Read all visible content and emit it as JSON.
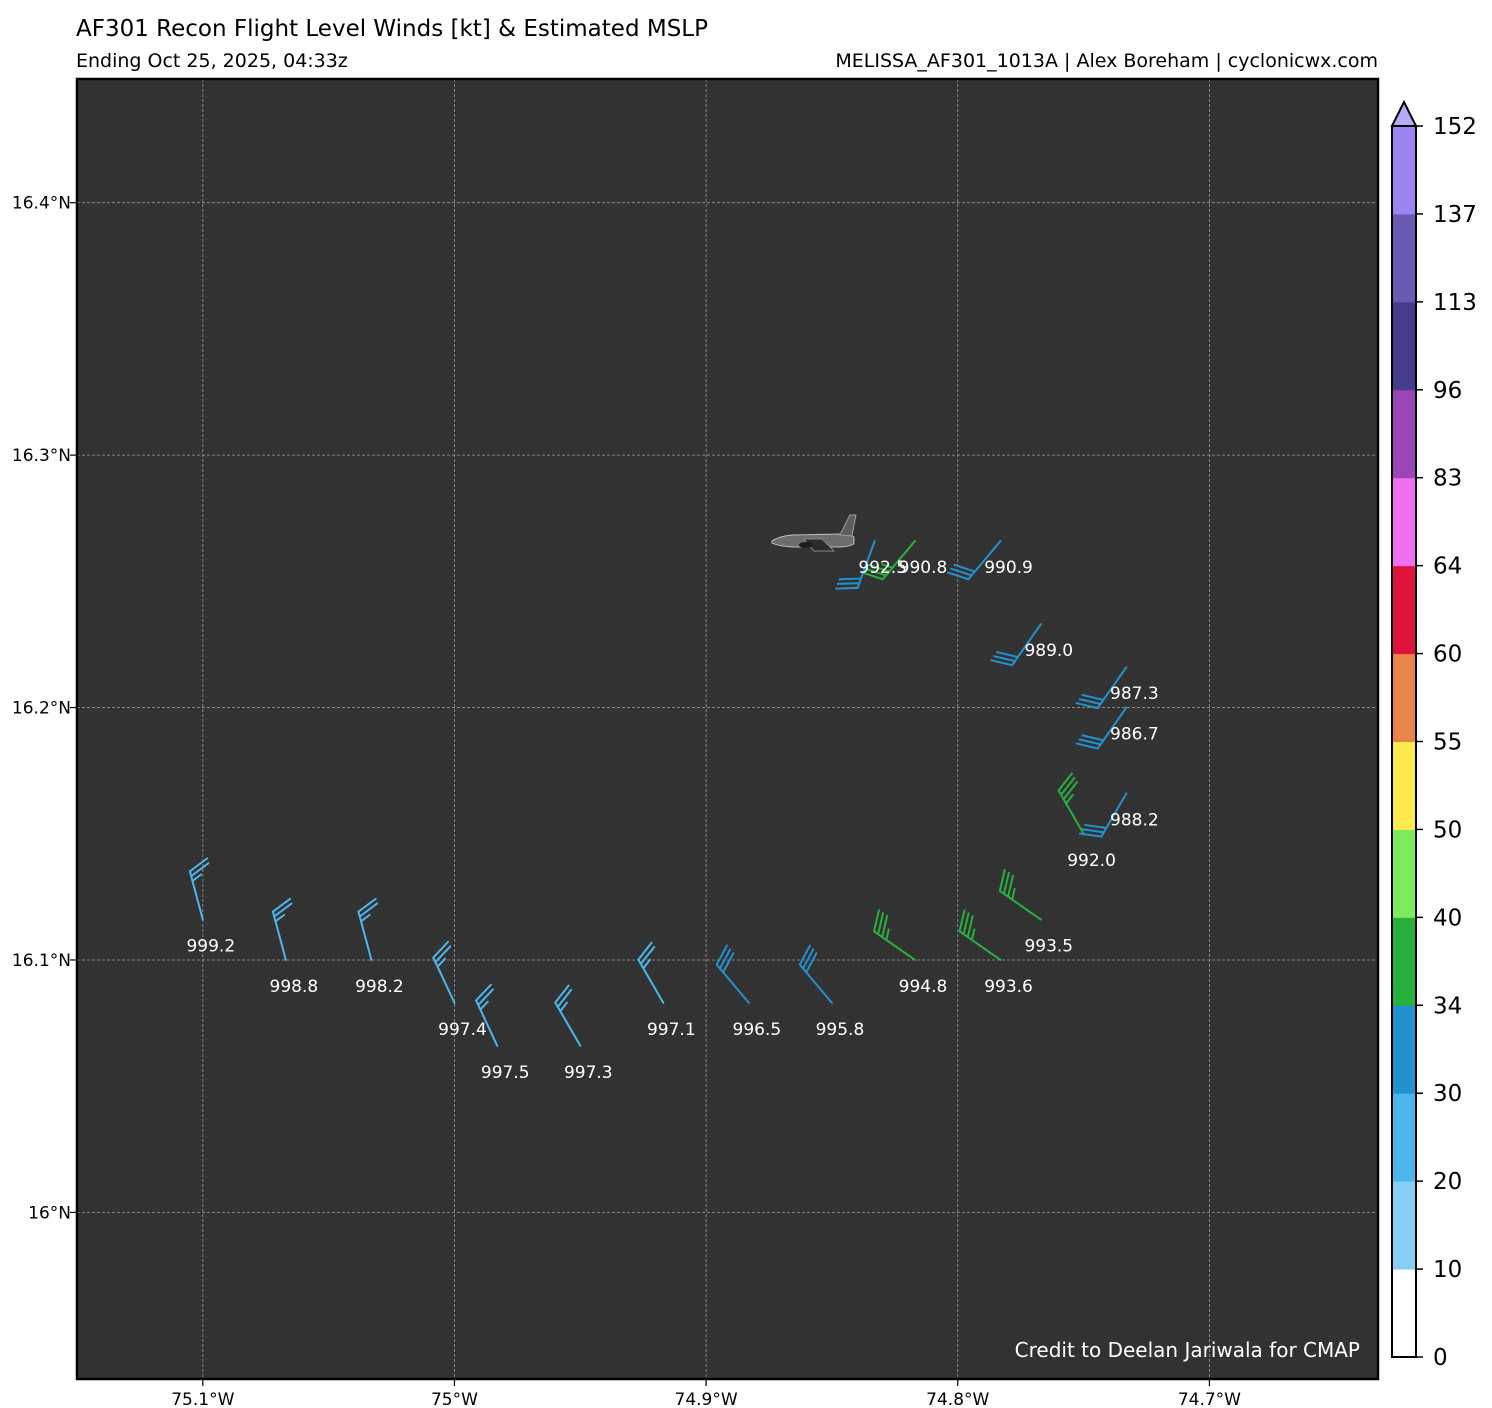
{
  "header": {
    "title": "AF301 Recon Flight Level Winds [kt] & Estimated MSLP",
    "subtitle_left": "Ending Oct 25, 2025, 04:33z",
    "subtitle_right": "MELISSA_AF301_1013A | Alex Boreham | cyclonicwx.com"
  },
  "credit": "Credit to Deelan Jariwala for CMAP",
  "colors": {
    "map_background": "#323232",
    "gridline": "#9a9a9a",
    "wind_20_30": "#4cb6ec",
    "wind_30_34": "#2291d0",
    "wind_34_40": "#28b03c",
    "label_text": "#ffffff"
  },
  "chart_data": {
    "type": "scatter",
    "description_of_marks": "wind barbs with pressure labels",
    "x_axis": {
      "lim": [
        -75.15,
        -74.633
      ],
      "ticks": [
        -75.1,
        -75.0,
        -74.9,
        -74.8,
        -74.7
      ],
      "tick_labels": [
        "75.1°W",
        "75°W",
        "74.9°W",
        "74.8°W",
        "74.7°W"
      ]
    },
    "y_axis": {
      "lim": [
        15.934,
        16.449
      ],
      "ticks": [
        16.0,
        16.1,
        16.2,
        16.3,
        16.4
      ],
      "tick_labels": [
        "16°N",
        "16.1°N",
        "16.2°N",
        "16.3°N",
        "16.4°N"
      ]
    },
    "grid": true,
    "colorbar": {
      "label_position": "right",
      "bounds": [
        0,
        10,
        20,
        30,
        34,
        40,
        50,
        55,
        60,
        64,
        83,
        96,
        113,
        137,
        152
      ],
      "tick_labels": [
        "0",
        "10",
        "20",
        "30",
        "34",
        "40",
        "50",
        "55",
        "60",
        "64",
        "83",
        "96",
        "113",
        "137",
        "152"
      ],
      "colors": [
        "#ffffff",
        "#87cef5",
        "#4cb6ec",
        "#2291d0",
        "#28b03c",
        "#7deb5c",
        "#fde84e",
        "#e8844a",
        "#dc143c",
        "#f06ef0",
        "#9b46b6",
        "#463c8c",
        "#6a5ab4",
        "#9a82f0"
      ],
      "extend_color": "#b9aaf5"
    },
    "observations": [
      {
        "lon": -75.1,
        "lat": 16.116,
        "wind_kt": 25,
        "dir_deg": 345,
        "mslp": "999.2"
      },
      {
        "lon": -75.067,
        "lat": 16.1,
        "wind_kt": 25,
        "dir_deg": 345,
        "mslp": "998.8"
      },
      {
        "lon": -75.033,
        "lat": 16.1,
        "wind_kt": 25,
        "dir_deg": 345,
        "mslp": "998.2"
      },
      {
        "lon": -75.0,
        "lat": 16.083,
        "wind_kt": 25,
        "dir_deg": 335,
        "mslp": "997.4"
      },
      {
        "lon": -74.983,
        "lat": 16.066,
        "wind_kt": 25,
        "dir_deg": 335,
        "mslp": "997.5"
      },
      {
        "lon": -74.95,
        "lat": 16.066,
        "wind_kt": 25,
        "dir_deg": 330,
        "mslp": "997.3"
      },
      {
        "lon": -74.917,
        "lat": 16.083,
        "wind_kt": 25,
        "dir_deg": 330,
        "mslp": "997.1"
      },
      {
        "lon": -74.883,
        "lat": 16.083,
        "wind_kt": 30,
        "dir_deg": 320,
        "mslp": "996.5"
      },
      {
        "lon": -74.85,
        "lat": 16.083,
        "wind_kt": 30,
        "dir_deg": 320,
        "mslp": "995.8"
      },
      {
        "lon": -74.817,
        "lat": 16.1,
        "wind_kt": 35,
        "dir_deg": 305,
        "mslp": "994.8"
      },
      {
        "lon": -74.783,
        "lat": 16.1,
        "wind_kt": 35,
        "dir_deg": 305,
        "mslp": "993.6"
      },
      {
        "lon": -74.767,
        "lat": 16.116,
        "wind_kt": 35,
        "dir_deg": 305,
        "mslp": "993.5"
      },
      {
        "lon": -74.75,
        "lat": 16.15,
        "wind_kt": 35,
        "dir_deg": 330,
        "mslp": "992.0"
      },
      {
        "lon": -74.733,
        "lat": 16.166,
        "wind_kt": 30,
        "dir_deg": 210,
        "mslp": "988.2"
      },
      {
        "lon": -74.733,
        "lat": 16.2,
        "wind_kt": 30,
        "dir_deg": 215,
        "mslp": "986.7"
      },
      {
        "lon": -74.733,
        "lat": 16.216,
        "wind_kt": 30,
        "dir_deg": 215,
        "mslp": "987.3"
      },
      {
        "lon": -74.767,
        "lat": 16.233,
        "wind_kt": 30,
        "dir_deg": 215,
        "mslp": "989.0"
      },
      {
        "lon": -74.783,
        "lat": 16.266,
        "wind_kt": 30,
        "dir_deg": 220,
        "mslp": "990.9"
      },
      {
        "lon": -74.817,
        "lat": 16.266,
        "wind_kt": 35,
        "dir_deg": 220,
        "mslp": "990.8"
      },
      {
        "lon": -74.833,
        "lat": 16.266,
        "wind_kt": 30,
        "dir_deg": 200,
        "mslp": "992.5"
      }
    ],
    "aircraft": {
      "lon": -74.85,
      "lat": 16.266,
      "icon": "aircraft-icon"
    }
  }
}
